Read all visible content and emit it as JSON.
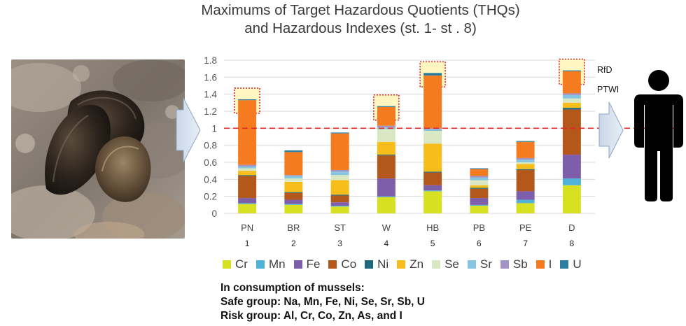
{
  "title": {
    "line1": "Maximums of Target Hazardous Quotients (THQs)",
    "line2": "and Hazardous Indexes (st. 1- st . 8)"
  },
  "icons": {
    "photo": "mussels-photo",
    "arrow_left": "right-arrow-icon",
    "arrow_right": "right-arrow-icon",
    "person": "person-icon"
  },
  "annotations": {
    "rfd": "RfD",
    "ptwi": "PTWI"
  },
  "notes": {
    "line1": "In consumption of mussels:",
    "line2": "Safe group: Na, Mn, Fe, Ni, Se, Sr, Sb, U",
    "line3": "Risk group: Al, Cr, Co, Zn, As, and I"
  },
  "chart_data": {
    "type": "bar",
    "stacked": true,
    "categories": [
      "PN",
      "BR",
      "ST",
      "W",
      "HB",
      "PB",
      "PE",
      "D"
    ],
    "station_numbers": [
      "1",
      "2",
      "3",
      "4",
      "5",
      "6",
      "7",
      "8"
    ],
    "ylim": [
      0,
      1.8
    ],
    "yticks": [
      "0",
      "0.2",
      "0.4",
      "0.6",
      "0.8",
      "1",
      "1.2",
      "1.4",
      "1.6",
      "1.8"
    ],
    "threshold": {
      "value": 1,
      "color": "#e32626",
      "style": "dashed"
    },
    "grid": true,
    "legend_position": "bottom",
    "series": [
      {
        "name": "Cr",
        "color": "#d8e022",
        "values": [
          0.11,
          0.1,
          0.08,
          0.19,
          0.26,
          0.09,
          0.12,
          0.33
        ]
      },
      {
        "name": "Mn",
        "color": "#4fb2d6",
        "values": [
          0.01,
          0.01,
          0.01,
          0.01,
          0.01,
          0.01,
          0.04,
          0.08
        ]
      },
      {
        "name": "Fe",
        "color": "#7d5eab",
        "values": [
          0.06,
          0.05,
          0.04,
          0.21,
          0.06,
          0.08,
          0.1,
          0.28
        ]
      },
      {
        "name": "Co",
        "color": "#b3571a",
        "values": [
          0.26,
          0.08,
          0.08,
          0.27,
          0.15,
          0.11,
          0.25,
          0.53
        ]
      },
      {
        "name": "Ni",
        "color": "#1e6a7a",
        "values": [
          0.01,
          0.01,
          0.01,
          0.01,
          0.01,
          0.01,
          0.01,
          0.02
        ]
      },
      {
        "name": "Zn",
        "color": "#f7bd1b",
        "values": [
          0.05,
          0.12,
          0.17,
          0.15,
          0.33,
          0.03,
          0.06,
          0.06
        ]
      },
      {
        "name": "Se",
        "color": "#d9e8c3",
        "values": [
          0.03,
          0.04,
          0.06,
          0.15,
          0.15,
          0.06,
          0.02,
          0.05
        ]
      },
      {
        "name": "Sr",
        "color": "#86c6e0",
        "values": [
          0.02,
          0.03,
          0.04,
          0.02,
          0.02,
          0.03,
          0.03,
          0.04
        ]
      },
      {
        "name": "Sb",
        "color": "#a394c8",
        "values": [
          0.02,
          0.01,
          0.02,
          0.02,
          0.01,
          0.02,
          0.02,
          0.02
        ]
      },
      {
        "name": "I",
        "color": "#f47b20",
        "values": [
          0.76,
          0.27,
          0.43,
          0.22,
          0.62,
          0.08,
          0.19,
          0.26
        ]
      },
      {
        "name": "U",
        "color": "#2d7ea3",
        "values": [
          0.01,
          0.02,
          0.01,
          0.01,
          0.03,
          0.01,
          0.01,
          0.01
        ]
      }
    ],
    "highlighted_bars": [
      "PN",
      "W",
      "HB",
      "D"
    ],
    "highlight_color": "#d42a2a"
  }
}
